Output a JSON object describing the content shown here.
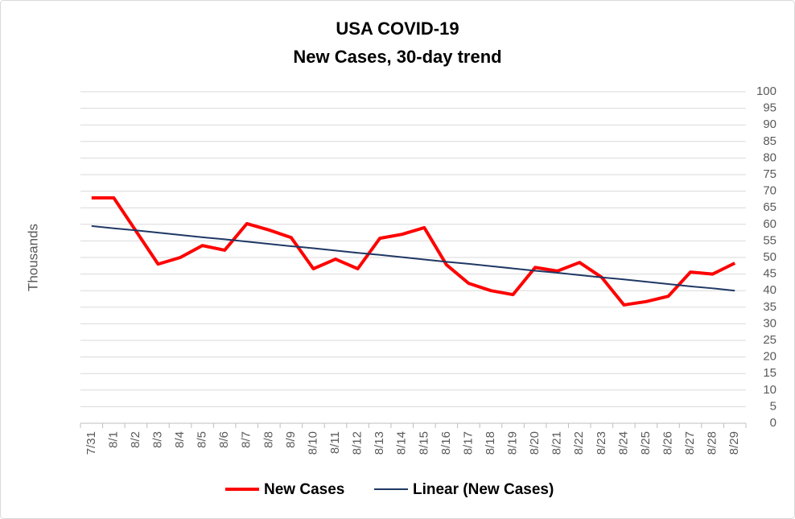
{
  "chart_data": {
    "type": "line",
    "title": "USA COVID-19",
    "subtitle": "New Cases, 30-day trend",
    "y_label": "Thousands",
    "categories": [
      "7/31",
      "8/1",
      "8/2",
      "8/3",
      "8/4",
      "8/5",
      "8/6",
      "8/7",
      "8/8",
      "8/9",
      "8/10",
      "8/11",
      "8/12",
      "8/13",
      "8/14",
      "8/15",
      "8/16",
      "8/17",
      "8/18",
      "8/19",
      "8/20",
      "8/21",
      "8/22",
      "8/23",
      "8/24",
      "8/25",
      "8/26",
      "8/27",
      "8/28",
      "8/29"
    ],
    "series": [
      {
        "name": "New Cases",
        "color": "#ff0000",
        "values": [
          68,
          68,
          58,
          48,
          50,
          53.6,
          52.2,
          60.2,
          58.3,
          56,
          46.6,
          49.5,
          46.6,
          55.8,
          57,
          59,
          47.8,
          42.2,
          40,
          38.8,
          47,
          45.9,
          48.5,
          44,
          35.7,
          36.7,
          38.3,
          45.6,
          45,
          48.3
        ]
      },
      {
        "name": "Linear (New Cases)",
        "color": "#1f3864",
        "values": [
          59.5,
          58.8,
          58.2,
          57.5,
          56.8,
          56.1,
          55.5,
          54.8,
          54.1,
          53.4,
          52.8,
          52.1,
          51.4,
          50.8,
          50.1,
          49.4,
          48.7,
          48.1,
          47.4,
          46.7,
          46.0,
          45.4,
          44.7,
          44.0,
          43.4,
          42.7,
          42.0,
          41.3,
          40.7,
          40.0
        ]
      }
    ],
    "ylim": [
      0,
      100
    ],
    "yticks": [
      0,
      5,
      10,
      15,
      20,
      25,
      30,
      35,
      40,
      45,
      50,
      55,
      60,
      65,
      70,
      75,
      80,
      85,
      90,
      95,
      100
    ],
    "y_axis_side": "right",
    "grid": true,
    "legend": "bottom"
  }
}
